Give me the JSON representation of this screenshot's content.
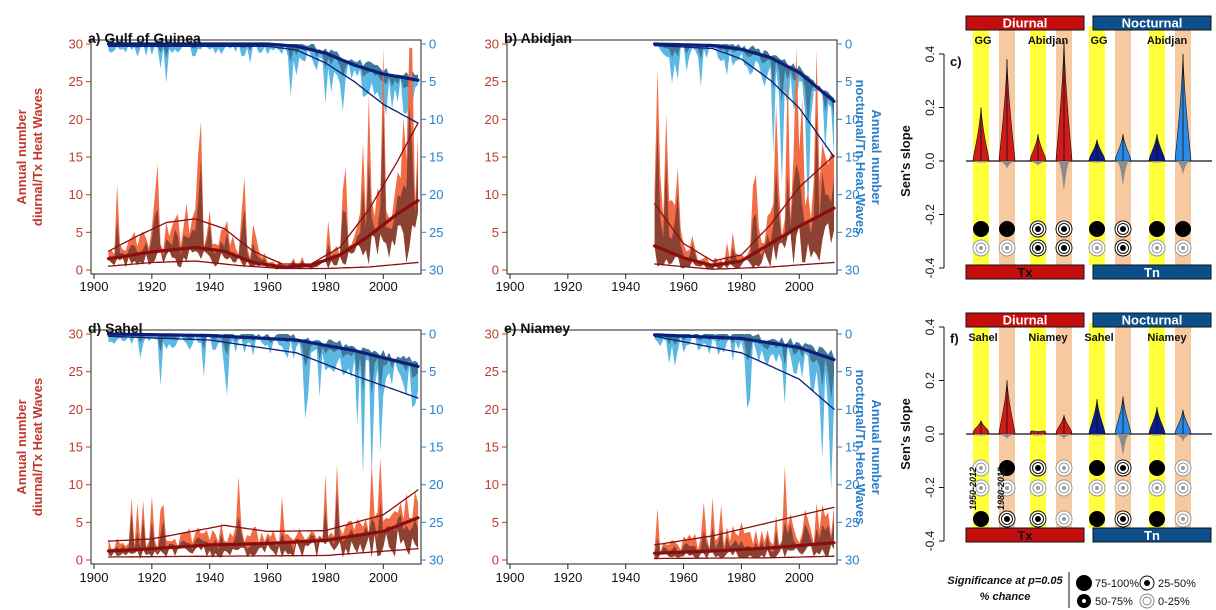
{
  "colors": {
    "tx_dark": "#8b0e0e",
    "tx_mid": "#c0392b",
    "tx_fill": "#f26d45",
    "tx_band": "#7a3b30",
    "tn_dark": "#0b1f7a",
    "tn_fill": "#5bb8e3",
    "tn_band": "#3d6b8a",
    "violin_tx": "#d11a1a",
    "violin_tn_early": "#0a1a8f",
    "violin_tn_late": "#2a8ae6",
    "violin_neg": "#8c8c8c",
    "yellow_col": "#ffff3a",
    "peach_col": "#f7c9a0",
    "diurnal_bar": "#c40e0e",
    "nocturnal_bar": "#0d4f8b"
  },
  "left_axis_ticks": [
    "0",
    "5",
    "10",
    "15",
    "20",
    "25",
    "30"
  ],
  "right_axis_ticks": [
    "0",
    "5",
    "10",
    "15",
    "20",
    "25",
    "30"
  ],
  "x_ticks": [
    "1900",
    "1920",
    "1940",
    "1960",
    "1980",
    "2000"
  ],
  "left_axis_label": [
    "Annual number",
    "diurnal/Tx Heat Waves"
  ],
  "right_axis_label": [
    "Annual number",
    "nocturnal/Tn Heat Waves"
  ],
  "violin_y_ticks": [
    "0.4",
    "0.2",
    "0.0",
    "-0.2",
    "-0.4"
  ],
  "violin_y_label": "Sen's slope",
  "chart_data": [
    {
      "type": "area",
      "panel": "a) Gulf of Guinea",
      "x_range": [
        1900,
        2012
      ],
      "ylim_left": [
        0,
        30
      ],
      "ylim_right_inverted": [
        0,
        30
      ],
      "series": [
        {
          "name": "",
          "axis": "left",
          "kind": "smooth_bold",
          "x": [
            1905,
            1920,
            1935,
            1945,
            1955,
            1965,
            1975,
            1985,
            1995,
            2005,
            2012
          ],
          "values": [
            1.5,
            2.4,
            3.0,
            2.5,
            1.0,
            0.4,
            0.6,
            2.0,
            4.5,
            7.5,
            9.2
          ]
        },
        {
          "name": "",
          "axis": "left",
          "kind": "smooth_thin_upper",
          "x": [
            1905,
            1915,
            1925,
            1935,
            1945,
            1955,
            1965,
            1975,
            1985,
            1995,
            2005,
            2012
          ],
          "values": [
            2.5,
            4.5,
            6.3,
            6.8,
            5.5,
            2.5,
            0.8,
            0.8,
            3.0,
            8.0,
            14.5,
            19.5
          ]
        },
        {
          "name": "",
          "axis": "left",
          "kind": "smooth_thin_lower",
          "x": [
            1905,
            1920,
            1935,
            1950,
            1965,
            1980,
            1995,
            2012
          ],
          "values": [
            0.5,
            1.0,
            1.2,
            0.6,
            0.2,
            0.2,
            0.4,
            1.0
          ]
        },
        {
          "name": "",
          "axis": "right",
          "kind": "smooth_bold",
          "x": [
            1905,
            1930,
            1960,
            1970,
            1980,
            1990,
            2000,
            2012
          ],
          "values": [
            0.0,
            0.0,
            0.0,
            0.3,
            1.2,
            2.8,
            4.0,
            4.8
          ]
        },
        {
          "name": "",
          "axis": "right",
          "kind": "smooth_thin",
          "x": [
            1905,
            1960,
            1970,
            1980,
            1990,
            2000,
            2012
          ],
          "values": [
            0.3,
            0.3,
            0.8,
            2.5,
            5.0,
            8.0,
            10.5
          ]
        }
      ]
    },
    {
      "type": "area",
      "panel": "b) Abidjan",
      "x_range": [
        1950,
        2012
      ],
      "ylim_left": [
        0,
        30
      ],
      "ylim_right_inverted": [
        0,
        30
      ],
      "series": [
        {
          "name": "",
          "axis": "left",
          "kind": "smooth_bold",
          "x": [
            1950,
            1960,
            1970,
            1980,
            1990,
            2000,
            2012
          ],
          "values": [
            3.2,
            1.6,
            0.6,
            1.2,
            3.5,
            5.8,
            8.2
          ]
        },
        {
          "name": "",
          "axis": "left",
          "kind": "smooth_thin_upper",
          "x": [
            1950,
            1960,
            1970,
            1980,
            1990,
            2000,
            2012
          ],
          "values": [
            8.8,
            3.5,
            1.2,
            2.0,
            6.0,
            11.0,
            15.2
          ]
        },
        {
          "name": "",
          "axis": "left",
          "kind": "smooth_thin_lower",
          "x": [
            1950,
            1970,
            1990,
            2012
          ],
          "values": [
            0.8,
            0.1,
            0.4,
            1.0
          ]
        },
        {
          "name": "",
          "axis": "right",
          "kind": "smooth_bold",
          "x": [
            1950,
            1970,
            1980,
            1990,
            2000,
            2012
          ],
          "values": [
            0.0,
            0.2,
            0.7,
            1.8,
            3.8,
            7.6
          ]
        },
        {
          "name": "",
          "axis": "right",
          "kind": "smooth_thin",
          "x": [
            1950,
            1970,
            1980,
            1990,
            2000,
            2012
          ],
          "values": [
            0.2,
            0.6,
            2.0,
            4.8,
            8.5,
            15.0
          ]
        }
      ]
    },
    {
      "type": "area",
      "panel": "d) Sahel",
      "x_range": [
        1900,
        2012
      ],
      "ylim_left": [
        0,
        30
      ],
      "ylim_right_inverted": [
        0,
        30
      ],
      "series": [
        {
          "name": "",
          "axis": "left",
          "kind": "smooth_bold",
          "x": [
            1905,
            1920,
            1940,
            1960,
            1980,
            2000,
            2012
          ],
          "values": [
            1.2,
            1.5,
            2.0,
            2.2,
            2.6,
            3.8,
            5.6
          ]
        },
        {
          "name": "",
          "axis": "left",
          "kind": "smooth_thin_upper",
          "x": [
            1905,
            1920,
            1945,
            1960,
            1980,
            2000,
            2012
          ],
          "values": [
            2.5,
            2.8,
            4.6,
            3.8,
            3.9,
            6.0,
            9.3
          ]
        },
        {
          "name": "",
          "axis": "left",
          "kind": "smooth_thin_lower",
          "x": [
            1905,
            1940,
            1980,
            2012
          ],
          "values": [
            0.4,
            0.5,
            0.6,
            1.5
          ]
        },
        {
          "name": "",
          "axis": "right",
          "kind": "smooth_bold",
          "x": [
            1905,
            1940,
            1970,
            1990,
            2012
          ],
          "values": [
            0.0,
            0.2,
            0.8,
            2.2,
            4.3
          ]
        },
        {
          "name": "",
          "axis": "right",
          "kind": "smooth_thin",
          "x": [
            1905,
            1940,
            1970,
            1990,
            2012
          ],
          "values": [
            0.3,
            0.8,
            2.5,
            5.5,
            8.5
          ]
        }
      ]
    },
    {
      "type": "area",
      "panel": "e) Niamey",
      "x_range": [
        1950,
        2012
      ],
      "ylim_left": [
        0,
        30
      ],
      "ylim_right_inverted": [
        0,
        30
      ],
      "series": [
        {
          "name": "",
          "axis": "left",
          "kind": "smooth_bold",
          "x": [
            1950,
            1970,
            1990,
            2012
          ],
          "values": [
            0.9,
            1.2,
            1.6,
            2.3
          ]
        },
        {
          "name": "",
          "axis": "left",
          "kind": "smooth_thin_upper",
          "x": [
            1950,
            1970,
            1990,
            2012
          ],
          "values": [
            2.0,
            3.2,
            5.0,
            7.0
          ]
        },
        {
          "name": "",
          "axis": "left",
          "kind": "smooth_thin_lower",
          "x": [
            1950,
            1990,
            2012
          ],
          "values": [
            0.2,
            0.3,
            0.5
          ]
        },
        {
          "name": "",
          "axis": "right",
          "kind": "smooth_bold",
          "x": [
            1950,
            1980,
            2000,
            2012
          ],
          "values": [
            0.1,
            0.6,
            1.8,
            3.4
          ]
        },
        {
          "name": "",
          "axis": "right",
          "kind": "smooth_thin",
          "x": [
            1950,
            1980,
            2000,
            2012
          ],
          "values": [
            0.3,
            2.5,
            6.0,
            10.0
          ]
        }
      ]
    },
    {
      "type": "violin",
      "panel": "c)",
      "ylim": [
        -0.4,
        0.4
      ],
      "group_labels": {
        "diurnal": "Diurnal",
        "nocturnal": "Nocturnal"
      },
      "bottom_labels": {
        "tx": "Tx",
        "tn": "Tn"
      },
      "columns": [
        {
          "label": "GG",
          "top": [
            0.2,
            0.38
          ],
          "bottom": [
            -0.01,
            -0.03
          ]
        },
        {
          "label": "Abidjan",
          "top": [
            0.1,
            0.45
          ],
          "bottom": [
            -0.02,
            -0.11
          ]
        },
        {
          "label": "GG",
          "top": [
            0.08,
            0.1
          ],
          "bottom": [
            -0.01,
            -0.09
          ]
        },
        {
          "label": "Abidjan",
          "top": [
            0.1,
            0.4
          ],
          "bottom": [
            -0.01,
            -0.05
          ]
        }
      ],
      "significance": [
        [
          "big",
          "big"
        ],
        [
          "dot",
          "dot"
        ],
        [
          "big",
          "dot"
        ],
        [
          "big",
          "big"
        ]
      ],
      "significance_low": [
        [
          "ring",
          "ring"
        ],
        [
          "dot",
          "dot"
        ],
        [
          "ring",
          "dot"
        ],
        [
          "ring",
          "ring"
        ]
      ]
    },
    {
      "type": "violin",
      "panel": "f)",
      "ylim": [
        -0.4,
        0.4
      ],
      "group_labels": {
        "diurnal": "Diurnal",
        "nocturnal": "Nocturnal"
      },
      "bottom_labels": {
        "tx": "Tx",
        "tn": "Tn"
      },
      "period_labels": [
        "1950-2012",
        "1980-2012"
      ],
      "columns": [
        {
          "label": "Sahel",
          "top": [
            0.05,
            0.2
          ],
          "bottom": [
            -0.01,
            -0.02
          ]
        },
        {
          "label": "Niamey",
          "top": [
            0.01,
            0.07
          ],
          "bottom": [
            -0.01,
            -0.02
          ]
        },
        {
          "label": "Sahel",
          "top": [
            0.13,
            0.14
          ],
          "bottom": [
            -0.01,
            -0.08
          ]
        },
        {
          "label": "Niamey",
          "top": [
            0.1,
            0.09
          ],
          "bottom": [
            -0.01,
            -0.03
          ]
        }
      ],
      "significance": [
        [
          "ring",
          "big"
        ],
        [
          "dot",
          "ring"
        ],
        [
          "big",
          "dot"
        ],
        [
          "big",
          "ring"
        ]
      ],
      "significance_low": [
        [
          "ring",
          "ring"
        ],
        [
          "ring",
          "ring"
        ],
        [
          "ring",
          "ring"
        ],
        [
          "ring",
          "ring"
        ]
      ]
    }
  ],
  "significance_legend": {
    "title_line1": "Significance at p=0.05",
    "title_line2": "% chance",
    "items": [
      "75-100%",
      "50-75%",
      "25-50%",
      "0-25%"
    ]
  }
}
